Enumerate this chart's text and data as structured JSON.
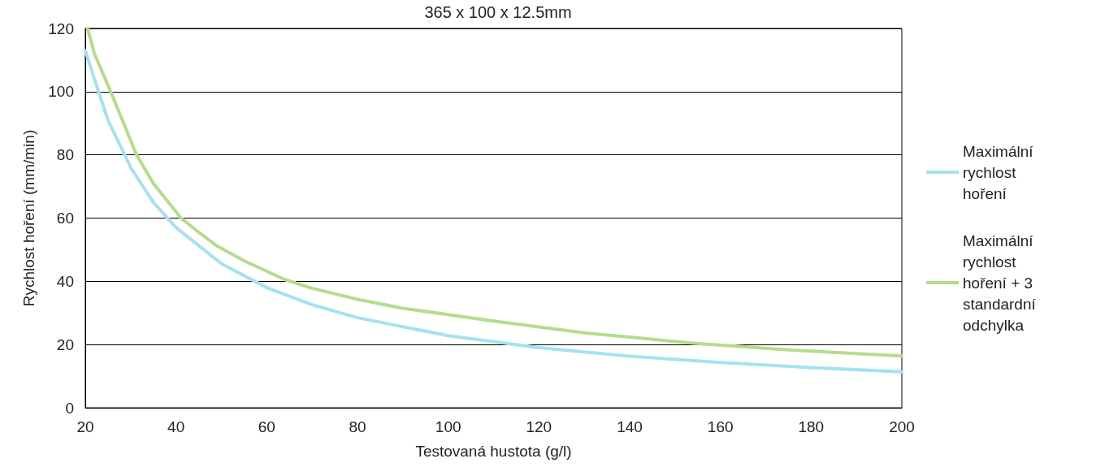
{
  "chart_data": {
    "type": "line",
    "title": "365 x 100 x 12.5mm",
    "xlabel": "Testovaná hustota (g/l)",
    "ylabel": "Rychlost hoření (mm/min)",
    "xlim": [
      20,
      200
    ],
    "xticks": [
      20,
      40,
      60,
      80,
      100,
      120,
      140,
      160,
      180,
      200
    ],
    "ylim": [
      0,
      120
    ],
    "yticks": [
      0,
      20,
      40,
      60,
      80,
      100,
      120
    ],
    "grid": "y",
    "legend": "right",
    "marker": "none",
    "line_style": "solid",
    "series": [
      {
        "name": "Maximální rychlost hoření",
        "color": "#a6e1f0",
        "x": [
          20,
          22,
          25,
          30,
          35,
          40,
          50,
          60,
          70,
          80,
          100,
          120,
          140,
          160,
          180,
          200
        ],
        "values": [
          113,
          104,
          91,
          76,
          65,
          57,
          45.6,
          38,
          32.6,
          28.5,
          22.8,
          19,
          16.3,
          14.3,
          12.7,
          11.4
        ]
      },
      {
        "name": "Maximální rychlost hoření + 3 standardní odchylka",
        "color": "#b5dc8c",
        "x": [
          20.5,
          22,
          25.6,
          31.3,
          35,
          41.1,
          45,
          48.8,
          55,
          63.9,
          70,
          80,
          90,
          108.7,
          130,
          153.4,
          175,
          200
        ],
        "values": [
          120,
          112,
          100,
          80,
          71,
          60,
          55.5,
          51.4,
          46.5,
          40.6,
          37.8,
          34.3,
          31.5,
          27.7,
          23.7,
          20.5,
          18.3,
          16.4
        ]
      }
    ]
  }
}
